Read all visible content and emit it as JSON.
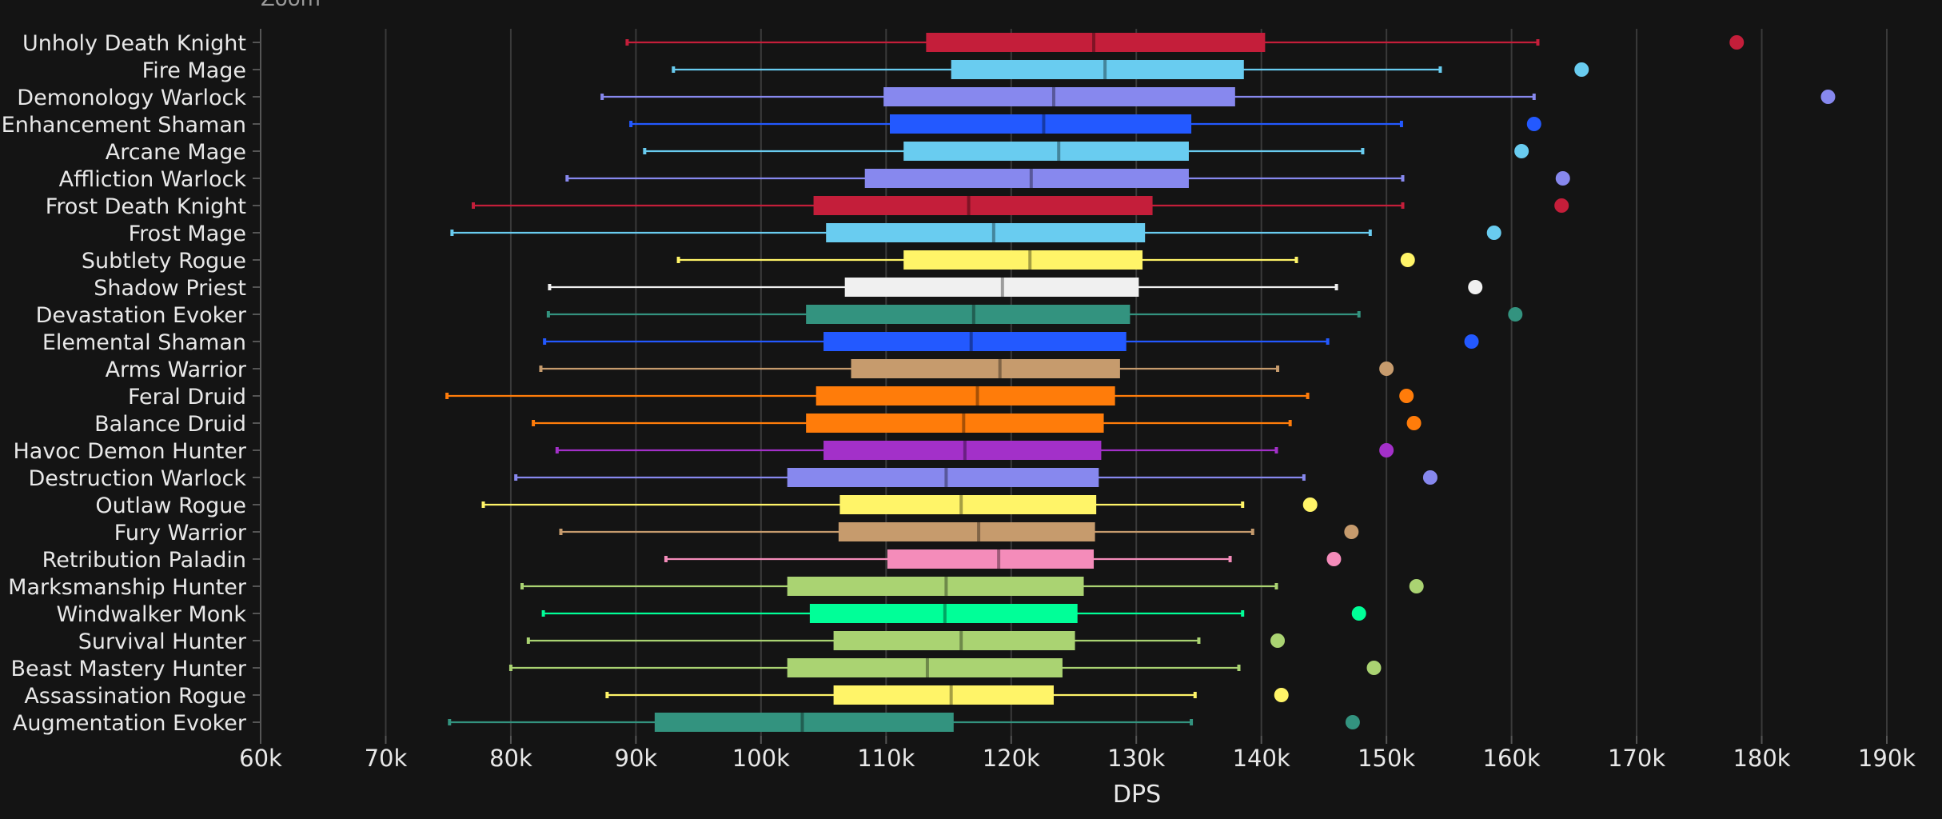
{
  "zoom_label": "Zoom",
  "colors": {
    "background": "#141414",
    "grid": "#3a3a3a",
    "text": "#e8e8e8",
    "axis": "#555555"
  },
  "chart_data": {
    "type": "boxplot",
    "title": "",
    "xlabel": "DPS",
    "ylabel": "",
    "xlim": [
      60000,
      190000
    ],
    "grid": true,
    "x_ticks": [
      60000,
      70000,
      80000,
      90000,
      100000,
      110000,
      120000,
      130000,
      140000,
      150000,
      160000,
      170000,
      180000,
      190000
    ],
    "x_tick_labels": [
      "60k",
      "70k",
      "80k",
      "90k",
      "100k",
      "110k",
      "120k",
      "130k",
      "140k",
      "150k",
      "160k",
      "170k",
      "180k",
      "190k"
    ],
    "series": [
      {
        "name": "Unholy Death Knight",
        "color": "#C41E3A",
        "min": 89300,
        "q1": 113200,
        "median": 126600,
        "q3": 140300,
        "max": 162100,
        "outlier": 178000
      },
      {
        "name": "Fire Mage",
        "color": "#69CCF0",
        "min": 93000,
        "q1": 115200,
        "median": 127500,
        "q3": 138600,
        "max": 154300,
        "outlier": 165600
      },
      {
        "name": "Demonology Warlock",
        "color": "#8788EE",
        "min": 87300,
        "q1": 109800,
        "median": 123400,
        "q3": 137900,
        "max": 161800,
        "outlier": 185300
      },
      {
        "name": "Enhancement Shaman",
        "color": "#2359FF",
        "min": 89600,
        "q1": 110300,
        "median": 122600,
        "q3": 134400,
        "max": 151200,
        "outlier": 161800
      },
      {
        "name": "Arcane Mage",
        "color": "#69CCF0",
        "min": 90700,
        "q1": 111400,
        "median": 123800,
        "q3": 134200,
        "max": 148100,
        "outlier": 160800
      },
      {
        "name": "Affliction Warlock",
        "color": "#8788EE",
        "min": 84500,
        "q1": 108300,
        "median": 121600,
        "q3": 134200,
        "max": 151300,
        "outlier": 164100
      },
      {
        "name": "Frost Death Knight",
        "color": "#C41E3A",
        "min": 77000,
        "q1": 104200,
        "median": 116600,
        "q3": 131300,
        "max": 151300,
        "outlier": 164000
      },
      {
        "name": "Frost Mage",
        "color": "#69CCF0",
        "min": 75300,
        "q1": 105200,
        "median": 118600,
        "q3": 130700,
        "max": 148700,
        "outlier": 158600
      },
      {
        "name": "Subtlety Rogue",
        "color": "#FFF468",
        "min": 93400,
        "q1": 111400,
        "median": 121500,
        "q3": 130500,
        "max": 142800,
        "outlier": 151700
      },
      {
        "name": "Shadow Priest",
        "color": "#F0F0F0",
        "min": 83100,
        "q1": 106700,
        "median": 119300,
        "q3": 130200,
        "max": 146000,
        "outlier": 157100
      },
      {
        "name": "Devastation Evoker",
        "color": "#33937F",
        "min": 83000,
        "q1": 103600,
        "median": 117000,
        "q3": 129500,
        "max": 147800,
        "outlier": 160300
      },
      {
        "name": "Elemental Shaman",
        "color": "#2359FF",
        "min": 82700,
        "q1": 105000,
        "median": 116800,
        "q3": 129200,
        "max": 145300,
        "outlier": 156800
      },
      {
        "name": "Arms Warrior",
        "color": "#C69B6D",
        "min": 82400,
        "q1": 107200,
        "median": 119100,
        "q3": 128700,
        "max": 141300,
        "outlier": 150000
      },
      {
        "name": "Feral Druid",
        "color": "#FF7C0A",
        "min": 74900,
        "q1": 104400,
        "median": 117300,
        "q3": 128300,
        "max": 143700,
        "outlier": 151600
      },
      {
        "name": "Balance Druid",
        "color": "#FF7C0A",
        "min": 81800,
        "q1": 103600,
        "median": 116200,
        "q3": 127400,
        "max": 142300,
        "outlier": 152200
      },
      {
        "name": "Havoc Demon Hunter",
        "color": "#A330C9",
        "min": 83700,
        "q1": 105000,
        "median": 116300,
        "q3": 127200,
        "max": 141200,
        "outlier": 150000
      },
      {
        "name": "Destruction Warlock",
        "color": "#8788EE",
        "min": 80400,
        "q1": 102100,
        "median": 114800,
        "q3": 127000,
        "max": 143400,
        "outlier": 153500
      },
      {
        "name": "Outlaw Rogue",
        "color": "#FFF468",
        "min": 77800,
        "q1": 106300,
        "median": 116000,
        "q3": 126800,
        "max": 138500,
        "outlier": 143900
      },
      {
        "name": "Fury Warrior",
        "color": "#C69B6D",
        "min": 84000,
        "q1": 106200,
        "median": 117400,
        "q3": 126700,
        "max": 139300,
        "outlier": 147200
      },
      {
        "name": "Retribution Paladin",
        "color": "#F48CBA",
        "min": 92400,
        "q1": 110100,
        "median": 119000,
        "q3": 126600,
        "max": 137500,
        "outlier": 145800
      },
      {
        "name": "Marksmanship Hunter",
        "color": "#AAD372",
        "min": 80900,
        "q1": 102100,
        "median": 114800,
        "q3": 125800,
        "max": 141200,
        "outlier": 152400
      },
      {
        "name": "Windwalker Monk",
        "color": "#00FF98",
        "min": 82600,
        "q1": 103900,
        "median": 114700,
        "q3": 125300,
        "max": 138500,
        "outlier": 147800
      },
      {
        "name": "Survival Hunter",
        "color": "#AAD372",
        "min": 81400,
        "q1": 105800,
        "median": 116000,
        "q3": 125100,
        "max": 135000,
        "outlier": 141300
      },
      {
        "name": "Beast Mastery Hunter",
        "color": "#AAD372",
        "min": 80000,
        "q1": 102100,
        "median": 113300,
        "q3": 124100,
        "max": 138200,
        "outlier": 149000
      },
      {
        "name": "Assassination Rogue",
        "color": "#FFF468",
        "min": 87700,
        "q1": 105800,
        "median": 115200,
        "q3": 123400,
        "max": 134700,
        "outlier": 141600
      },
      {
        "name": "Augmentation Evoker",
        "color": "#33937F",
        "min": 75100,
        "q1": 91500,
        "median": 103300,
        "q3": 115400,
        "max": 134400,
        "outlier": 147300
      }
    ]
  }
}
